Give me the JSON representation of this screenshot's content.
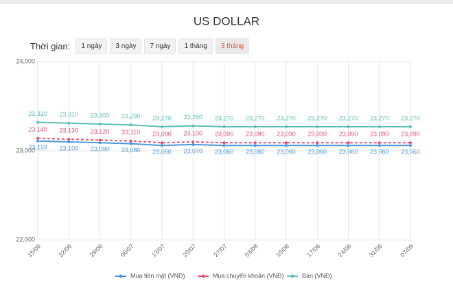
{
  "controls": {
    "label": "Thời gian:",
    "options": [
      "1 ngày",
      "3 ngày",
      "7 ngày",
      "1 tháng",
      "3 tháng"
    ],
    "active": 4
  },
  "chart_data": {
    "type": "line",
    "title": "US DOLLAR",
    "categories": [
      "15/06",
      "22/06",
      "29/06",
      "06/07",
      "13/07",
      "20/07",
      "27/07",
      "03/08",
      "10/08",
      "17/08",
      "24/08",
      "31/08",
      "07/09"
    ],
    "series": [
      {
        "name": "Mua tiền mặt (VNĐ)",
        "color": "#4a98dc",
        "dashed": false,
        "values": [
          23110,
          23100,
          23090,
          23080,
          23060,
          23070,
          23060,
          23060,
          23060,
          23060,
          23060,
          23060,
          23060
        ],
        "value_labels": [
          "23,110",
          "23,100",
          "23,090",
          "23,080",
          "23,060",
          "23,070",
          "23,060",
          "23,060",
          "23,060",
          "23,060",
          "23,060",
          "23,060",
          "23,060"
        ]
      },
      {
        "name": "Mua chuyển khoản (VNĐ)",
        "color": "#e0546f",
        "dashed": true,
        "values": [
          23140,
          23130,
          23120,
          23110,
          23090,
          23100,
          23090,
          23090,
          23090,
          23090,
          23090,
          23090,
          23090
        ],
        "value_labels": [
          "23,140",
          "23,130",
          "23,120",
          "23,110",
          "23,090",
          "23,100",
          "23,090",
          "23,090",
          "23,090",
          "23,090",
          "23,090",
          "23,090",
          "23,090"
        ]
      },
      {
        "name": "Bán (VNĐ)",
        "color": "#5cbfb4",
        "dashed": false,
        "values": [
          23320,
          23310,
          23300,
          23290,
          23270,
          23280,
          23270,
          23270,
          23270,
          23270,
          23270,
          23270,
          23270
        ],
        "value_labels": [
          "23,320",
          "23,310",
          "23,300",
          "23,290",
          "23,270",
          "23,280",
          "23,270",
          "23,270",
          "23,270",
          "23,270",
          "23,270",
          "23,270",
          "23,270"
        ]
      }
    ],
    "ylim": [
      22000,
      24000
    ],
    "yticks": [
      {
        "value": 22000,
        "label": "22,000"
      },
      {
        "value": 23000,
        "label": "23,000"
      },
      {
        "value": 24000,
        "label": "24,000"
      }
    ],
    "grid": true
  }
}
